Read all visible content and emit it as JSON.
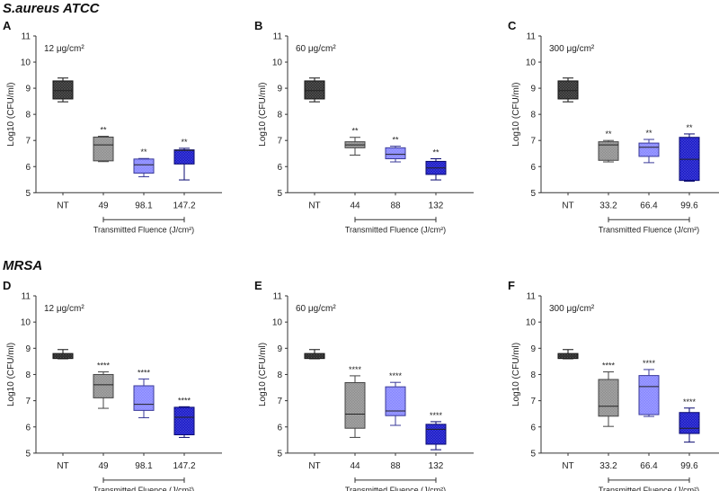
{
  "chart_data": {
    "type": "box",
    "section_titles": [
      "S.aureus ATCC",
      "MRSA"
    ],
    "ylabel": "Log10 (CFU/ml)",
    "xlabel": "Transmitted Fluence (J/cm²)",
    "ylim": [
      5,
      11
    ],
    "yticks": [
      5,
      6,
      7,
      8,
      9,
      10,
      11
    ],
    "colors": [
      "#2b2b2b",
      "#8e8e8e",
      "#8585ff",
      "#1414c8"
    ],
    "panels": [
      {
        "letter": "A",
        "section": 0,
        "concentration": "12 μg/cm²",
        "categories": [
          "NT",
          "49",
          "98.1",
          "147.2"
        ],
        "boxes": [
          {
            "min": 8.48,
            "q1": 8.59,
            "median": 8.91,
            "q3": 9.28,
            "max": 9.39,
            "sig": ""
          },
          {
            "min": 6.19,
            "q1": 6.22,
            "median": 6.83,
            "q3": 7.13,
            "max": 7.16,
            "sig": "**"
          },
          {
            "min": 5.61,
            "q1": 5.75,
            "median": 6.07,
            "q3": 6.29,
            "max": 6.31,
            "sig": "**"
          },
          {
            "min": 5.49,
            "q1": 6.1,
            "median": 6.62,
            "q3": 6.64,
            "max": 6.7,
            "sig": "**"
          }
        ]
      },
      {
        "letter": "B",
        "section": 0,
        "concentration": "60 μg/cm²",
        "categories": [
          "NT",
          "44",
          "88",
          "132"
        ],
        "boxes": [
          {
            "min": 8.48,
            "q1": 8.59,
            "median": 8.91,
            "q3": 9.28,
            "max": 9.39,
            "sig": ""
          },
          {
            "min": 6.44,
            "q1": 6.72,
            "median": 6.83,
            "q3": 6.95,
            "max": 7.12,
            "sig": "**"
          },
          {
            "min": 6.18,
            "q1": 6.3,
            "median": 6.47,
            "q3": 6.72,
            "max": 6.78,
            "sig": "**"
          },
          {
            "min": 5.49,
            "q1": 5.7,
            "median": 5.95,
            "q3": 6.2,
            "max": 6.3,
            "sig": "**"
          }
        ]
      },
      {
        "letter": "C",
        "section": 0,
        "concentration": "300 μg/cm²",
        "categories": [
          "NT",
          "33.2",
          "66.4",
          "99.6"
        ],
        "boxes": [
          {
            "min": 8.48,
            "q1": 8.59,
            "median": 8.91,
            "q3": 9.28,
            "max": 9.39,
            "sig": ""
          },
          {
            "min": 6.18,
            "q1": 6.24,
            "median": 6.83,
            "q3": 6.95,
            "max": 7.0,
            "sig": "**"
          },
          {
            "min": 6.15,
            "q1": 6.39,
            "median": 6.74,
            "q3": 6.9,
            "max": 7.04,
            "sig": "**"
          },
          {
            "min": 5.44,
            "q1": 5.47,
            "median": 6.28,
            "q3": 7.12,
            "max": 7.25,
            "sig": "**"
          }
        ]
      },
      {
        "letter": "D",
        "section": 1,
        "concentration": "12 μg/cm²",
        "categories": [
          "NT",
          "49",
          "98.1",
          "147.2"
        ],
        "boxes": [
          {
            "min": 8.6,
            "q1": 8.61,
            "median": 8.7,
            "q3": 8.8,
            "max": 8.95,
            "sig": ""
          },
          {
            "min": 6.71,
            "q1": 7.11,
            "median": 7.61,
            "q3": 8.0,
            "max": 8.1,
            "sig": "****"
          },
          {
            "min": 6.35,
            "q1": 6.63,
            "median": 6.86,
            "q3": 7.57,
            "max": 7.83,
            "sig": "****"
          },
          {
            "min": 5.6,
            "q1": 5.7,
            "median": 6.37,
            "q3": 6.75,
            "max": 6.77,
            "sig": "****"
          }
        ]
      },
      {
        "letter": "E",
        "section": 1,
        "concentration": "60 μg/cm²",
        "categories": [
          "NT",
          "44",
          "88",
          "132"
        ],
        "boxes": [
          {
            "min": 8.6,
            "q1": 8.61,
            "median": 8.7,
            "q3": 8.8,
            "max": 8.95,
            "sig": ""
          },
          {
            "min": 5.6,
            "q1": 5.95,
            "median": 6.49,
            "q3": 7.69,
            "max": 7.95,
            "sig": "****"
          },
          {
            "min": 6.06,
            "q1": 6.43,
            "median": 6.61,
            "q3": 7.53,
            "max": 7.7,
            "sig": "****"
          },
          {
            "min": 5.13,
            "q1": 5.34,
            "median": 5.91,
            "q3": 6.1,
            "max": 6.2,
            "sig": "****"
          }
        ]
      },
      {
        "letter": "F",
        "section": 1,
        "concentration": "300 μg/cm²",
        "categories": [
          "NT",
          "33.2",
          "66.4",
          "99.6"
        ],
        "boxes": [
          {
            "min": 8.6,
            "q1": 8.61,
            "median": 8.7,
            "q3": 8.8,
            "max": 8.95,
            "sig": ""
          },
          {
            "min": 6.02,
            "q1": 6.41,
            "median": 6.79,
            "q3": 7.81,
            "max": 8.1,
            "sig": "****"
          },
          {
            "min": 6.4,
            "q1": 6.47,
            "median": 7.54,
            "q3": 7.96,
            "max": 8.19,
            "sig": "****"
          },
          {
            "min": 5.42,
            "q1": 5.75,
            "median": 5.95,
            "q3": 6.55,
            "max": 6.72,
            "sig": "****"
          }
        ]
      }
    ]
  }
}
